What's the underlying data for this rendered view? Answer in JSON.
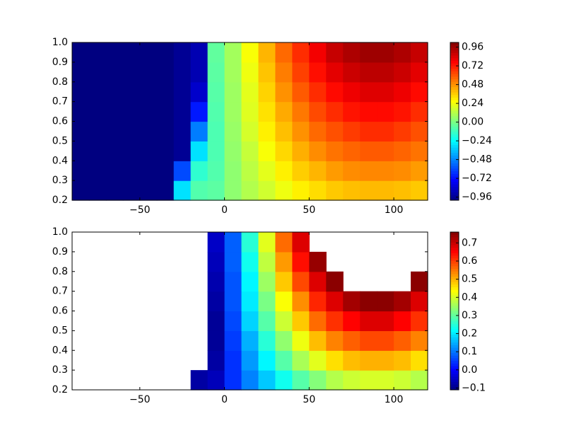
{
  "chart_data": [
    {
      "type": "contour",
      "colormap": "jet",
      "x": [
        -85,
        -75,
        -65,
        -55,
        -45,
        -35,
        -25,
        -15,
        -5,
        5,
        15,
        25,
        35,
        45,
        55,
        65,
        75,
        85,
        95,
        105,
        115
      ],
      "y": [
        0.25,
        0.35,
        0.45,
        0.55,
        0.65,
        0.75,
        0.85,
        0.95
      ],
      "z": [
        [
          -1,
          -1,
          -1,
          -1,
          -1,
          -1,
          -0.3,
          -0.08,
          -0.06,
          0.04,
          0.11,
          0.17,
          0.23,
          0.29,
          0.33,
          0.37,
          0.39,
          0.4,
          0.4,
          0.39,
          0.37
        ],
        [
          -1,
          -1,
          -1,
          -1,
          -1,
          -1,
          -0.6,
          -0.15,
          -0.08,
          0.04,
          0.13,
          0.21,
          0.29,
          0.36,
          0.41,
          0.46,
          0.49,
          0.5,
          0.5,
          0.49,
          0.46
        ],
        [
          -1,
          -1,
          -1,
          -1,
          -1,
          -1,
          -0.96,
          -0.3,
          -0.09,
          0.05,
          0.15,
          0.25,
          0.34,
          0.42,
          0.49,
          0.54,
          0.57,
          0.59,
          0.59,
          0.57,
          0.54
        ],
        [
          -1,
          -1,
          -1,
          -1,
          -1,
          -1,
          -0.96,
          -0.5,
          -0.09,
          0.06,
          0.18,
          0.29,
          0.39,
          0.48,
          0.56,
          0.61,
          0.65,
          0.68,
          0.68,
          0.65,
          0.61
        ],
        [
          -1,
          -1,
          -1,
          -1,
          -1,
          -1,
          -0.96,
          -0.7,
          -0.08,
          0.07,
          0.2,
          0.32,
          0.43,
          0.53,
          0.62,
          0.68,
          0.73,
          0.75,
          0.75,
          0.73,
          0.68
        ],
        [
          -1,
          -1,
          -1,
          -1,
          -1,
          -1,
          -0.96,
          -0.85,
          -0.07,
          0.07,
          0.21,
          0.35,
          0.48,
          0.59,
          0.68,
          0.75,
          0.8,
          0.83,
          0.83,
          0.8,
          0.75
        ],
        [
          -1,
          -1,
          -1,
          -1,
          -1,
          -1,
          -0.96,
          -0.9,
          -0.06,
          0.08,
          0.23,
          0.38,
          0.52,
          0.64,
          0.74,
          0.82,
          0.87,
          0.9,
          0.9,
          0.87,
          0.82
        ],
        [
          -1,
          -1,
          -1,
          -1,
          -1,
          -1,
          -0.96,
          -0.9,
          -0.05,
          0.08,
          0.25,
          0.41,
          0.56,
          0.68,
          0.79,
          0.88,
          0.93,
          0.96,
          0.96,
          0.93,
          0.88
        ]
      ],
      "xlim": [
        -90,
        120
      ],
      "ylim": [
        0.2,
        1.0
      ],
      "xticks": [
        {
          "value": -50,
          "label": "−50"
        },
        0,
        50,
        100
      ],
      "yticks": [
        0.2,
        0.3,
        0.4,
        0.5,
        0.6,
        0.7,
        0.8,
        0.9,
        {
          "value": 1.0,
          "label": "1.0"
        }
      ],
      "clim": [
        -1,
        1.02
      ],
      "cticks": [
        {
          "value": -0.96,
          "label": "−0.96"
        },
        {
          "value": -0.72,
          "label": "−0.72"
        },
        {
          "value": -0.48,
          "label": "−0.48"
        },
        {
          "value": -0.24,
          "label": "−0.24"
        },
        {
          "value": 0,
          "label": "0.00"
        },
        0.24,
        0.48,
        0.72,
        0.96
      ]
    },
    {
      "type": "contour",
      "colormap": "jet",
      "x": [
        -85,
        -75,
        -65,
        -55,
        -45,
        -35,
        -25,
        -15,
        -5,
        5,
        15,
        25,
        35,
        45,
        55,
        65,
        75,
        85,
        95,
        105,
        115
      ],
      "y": [
        0.25,
        0.35,
        0.45,
        0.55,
        0.65,
        0.75,
        0.85,
        0.95
      ],
      "z": [
        [
          null,
          null,
          null,
          null,
          null,
          null,
          null,
          -0.08,
          -0.06,
          0.04,
          0.11,
          0.17,
          0.23,
          0.29,
          0.33,
          0.37,
          0.39,
          0.4,
          0.4,
          0.39,
          0.37
        ],
        [
          null,
          null,
          null,
          null,
          null,
          null,
          null,
          null,
          -0.08,
          0.04,
          0.13,
          0.21,
          0.29,
          0.36,
          0.41,
          0.46,
          0.49,
          0.5,
          0.5,
          0.49,
          0.46
        ],
        [
          null,
          null,
          null,
          null,
          null,
          null,
          null,
          null,
          -0.09,
          0.05,
          0.15,
          0.25,
          0.34,
          0.42,
          0.49,
          0.54,
          0.57,
          0.59,
          0.59,
          0.57,
          0.54
        ],
        [
          null,
          null,
          null,
          null,
          null,
          null,
          null,
          null,
          -0.09,
          0.06,
          0.18,
          0.29,
          0.39,
          0.48,
          0.56,
          0.61,
          0.65,
          0.68,
          0.68,
          0.65,
          0.61
        ],
        [
          null,
          null,
          null,
          null,
          null,
          null,
          null,
          null,
          -0.08,
          0.07,
          0.2,
          0.32,
          0.43,
          0.53,
          0.62,
          0.68,
          0.73,
          0.75,
          0.75,
          0.73,
          0.68
        ],
        [
          null,
          null,
          null,
          null,
          null,
          null,
          null,
          null,
          -0.07,
          0.07,
          0.21,
          0.35,
          0.48,
          0.59,
          0.68,
          0.75,
          null,
          null,
          null,
          null,
          0.75
        ],
        [
          null,
          null,
          null,
          null,
          null,
          null,
          null,
          null,
          -0.06,
          0.08,
          0.23,
          0.38,
          0.52,
          0.64,
          0.74,
          null,
          null,
          null,
          null,
          null,
          null
        ],
        [
          null,
          null,
          null,
          null,
          null,
          null,
          null,
          null,
          -0.05,
          0.08,
          0.25,
          0.41,
          0.56,
          0.68,
          null,
          null,
          null,
          null,
          null,
          null,
          null
        ]
      ],
      "xlim": [
        -90,
        120
      ],
      "ylim": [
        0.2,
        1.0
      ],
      "xticks": [
        {
          "value": -50,
          "label": "−50"
        },
        0,
        50,
        100
      ],
      "yticks": [
        0.2,
        0.3,
        0.4,
        0.5,
        0.6,
        0.7,
        0.8,
        0.9,
        {
          "value": 1.0,
          "label": "1.0"
        }
      ],
      "clim": [
        -0.11,
        0.76
      ],
      "cticks": [
        {
          "value": -0.1,
          "label": "−0.1"
        },
        {
          "value": 0,
          "label": "0.0"
        },
        0.1,
        0.2,
        0.3,
        0.4,
        0.5,
        0.6,
        0.7
      ]
    }
  ]
}
